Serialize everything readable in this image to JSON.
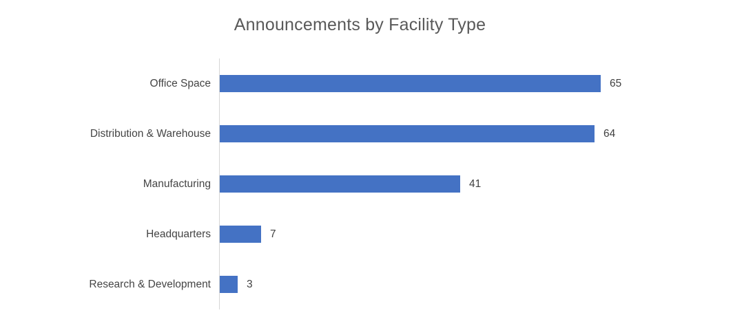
{
  "chart_data": {
    "type": "bar",
    "orientation": "horizontal",
    "title": "Announcements by Facility Type",
    "categories": [
      "Office Space",
      "Distribution & Warehouse",
      "Manufacturing",
      "Headquarters",
      "Research & Development"
    ],
    "values": [
      65,
      64,
      41,
      7,
      3
    ],
    "data_labels": [
      "65",
      "64",
      "41",
      "7",
      "3"
    ],
    "xlabel": "",
    "ylabel": "",
    "xlim": [
      0,
      65
    ],
    "grid": false,
    "legend": false,
    "bar_color": "#4472C4",
    "axis_line_color": "#D6D6D6",
    "title_color": "#595959",
    "label_color": "#444444",
    "value_label_color": "#404040",
    "background_color": "#FFFFFF"
  }
}
